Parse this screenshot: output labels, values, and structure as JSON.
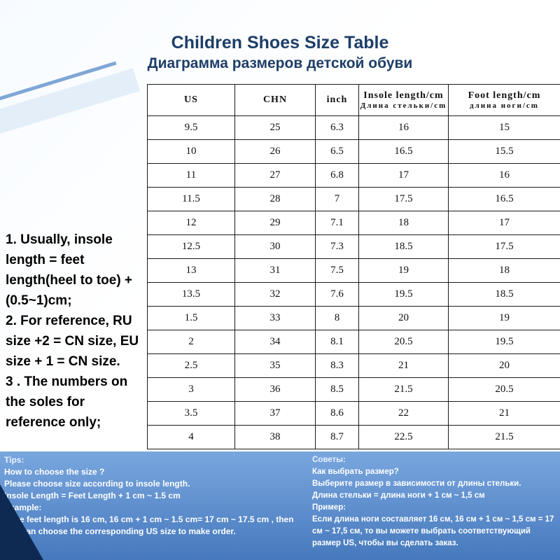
{
  "title": {
    "line1": "Children Shoes Size Table",
    "line2": "Диаграмма размеров детской обуви"
  },
  "chart_data": {
    "type": "table",
    "title": "Children Shoes Size Table",
    "columns": [
      {
        "main": "US",
        "sub": ""
      },
      {
        "main": "CHN",
        "sub": ""
      },
      {
        "main": "inch",
        "sub": ""
      },
      {
        "main": "Insole length/cm",
        "sub": "Длина стельки/cm"
      },
      {
        "main": "Foot length/cm",
        "sub": "длина ноги/cm"
      }
    ],
    "rows": [
      [
        "9.5",
        "25",
        "6.3",
        "16",
        "15"
      ],
      [
        "10",
        "26",
        "6.5",
        "16.5",
        "15.5"
      ],
      [
        "11",
        "27",
        "6.8",
        "17",
        "16"
      ],
      [
        "11.5",
        "28",
        "7",
        "17.5",
        "16.5"
      ],
      [
        "12",
        "29",
        "7.1",
        "18",
        "17"
      ],
      [
        "12.5",
        "30",
        "7.3",
        "18.5",
        "17.5"
      ],
      [
        "13",
        "31",
        "7.5",
        "19",
        "18"
      ],
      [
        "13.5",
        "32",
        "7.6",
        "19.5",
        "18.5"
      ],
      [
        "1.5",
        "33",
        "8",
        "20",
        "19"
      ],
      [
        "2",
        "34",
        "8.1",
        "20.5",
        "19.5"
      ],
      [
        "2.5",
        "35",
        "8.3",
        "21",
        "20"
      ],
      [
        "3",
        "36",
        "8.5",
        "21.5",
        "20.5"
      ],
      [
        "3.5",
        "37",
        "8.6",
        "22",
        "21"
      ],
      [
        "4",
        "38",
        "8.7",
        "22.5",
        "21.5"
      ]
    ]
  },
  "notes": {
    "items": [
      "1. Usually, insole length = feet length(heel to toe) + (0.5~1)cm;",
      "2. For reference, RU size +2 = CN size, EU size + 1 = CN size.",
      "3 . The numbers on the soles for reference only;"
    ]
  },
  "tips_en": {
    "heading": "Tips:",
    "lines": [
      "How to choose the size ?",
      "Please choose size according to insole length.",
      "Insole Length = Feet Length + 1 cm ~ 1.5 cm",
      "Example:",
      "If the feet length is 16 cm, 16 cm + 1 cm ~ 1.5 cm= 17 cm ~ 17.5 cm , then you can choose the corresponding US size to make order."
    ]
  },
  "tips_ru": {
    "heading": "Советы:",
    "lines": [
      "Как выбрать размер?",
      "Выберите размер в зависимости от длины стельки.",
      "Длина стельки = длина ноги + 1 см ~ 1,5 см",
      "Пример:",
      "Если длина ноги составляет 16 см, 16 см + 1 см ~ 1,5 см = 17 см ~ 17,5 см, то вы можете выбрать соответствующий размер US, чтобы вы сделать заказ."
    ]
  },
  "colors": {
    "title_navy": "#1d3e68",
    "band_blue_top": "#79a6de",
    "band_blue_bottom": "#4679bd",
    "corner_navy": "#0e2a52",
    "table_border": "#1a1a1a"
  }
}
